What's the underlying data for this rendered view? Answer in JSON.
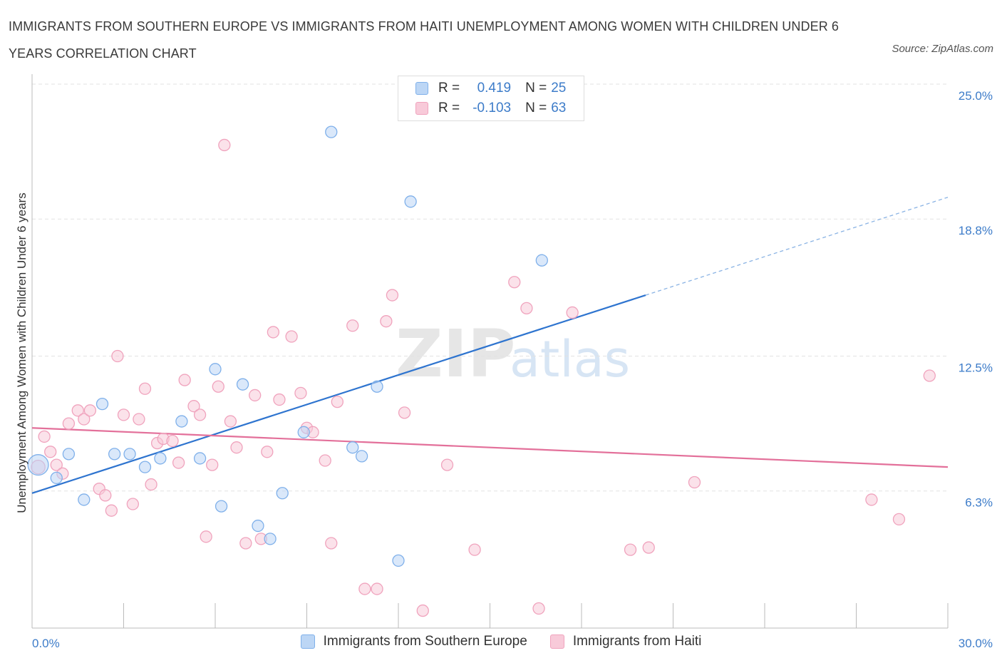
{
  "title": "IMMIGRANTS FROM SOUTHERN EUROPE VS IMMIGRANTS FROM HAITI UNEMPLOYMENT AMONG WOMEN WITH CHILDREN UNDER 6 YEARS CORRELATION CHART",
  "source": "Source: ZipAtlas.com",
  "watermark": {
    "zip": "ZIP",
    "atlas": "atlas"
  },
  "legend_top": {
    "r_label": "R =",
    "n_label": "N =",
    "rows": [
      {
        "r": "0.419",
        "n": "25"
      },
      {
        "r": "-0.103",
        "n": "63"
      }
    ]
  },
  "chart_data": {
    "type": "scatter",
    "xlabel": "",
    "ylabel": "Unemployment Among Women with Children Under 6 years",
    "xlim": [
      0,
      30
    ],
    "ylim": [
      0,
      25
    ],
    "x_tick_labels": [
      "0.0%",
      "30.0%"
    ],
    "y_ticks": [
      {
        "value": 6.3,
        "label": "6.3%"
      },
      {
        "value": 12.5,
        "label": "12.5%"
      },
      {
        "value": 18.8,
        "label": "18.8%"
      },
      {
        "value": 25.0,
        "label": "25.0%"
      }
    ],
    "grid": true,
    "legend_position": "bottom",
    "series": [
      {
        "name": "Immigrants from Southern Europe",
        "color": "#7fb0ea",
        "fill": "#bcd6f5",
        "trend": {
          "x0": 0,
          "y0": 6.2,
          "x1": 20.1,
          "y1": 15.3,
          "dash_x1": 30,
          "dash_y1": 19.8
        },
        "points": [
          [
            0.2,
            7.5,
            18
          ],
          [
            0.8,
            6.9,
            10
          ],
          [
            1.2,
            8.0,
            10
          ],
          [
            1.7,
            5.9,
            10
          ],
          [
            2.3,
            10.3,
            10
          ],
          [
            2.7,
            8.0,
            10
          ],
          [
            3.2,
            8.0,
            10
          ],
          [
            3.7,
            7.4,
            10
          ],
          [
            4.2,
            7.8,
            10
          ],
          [
            4.9,
            9.5,
            10
          ],
          [
            5.5,
            7.8,
            10
          ],
          [
            6.0,
            11.9,
            10
          ],
          [
            6.2,
            5.6,
            10
          ],
          [
            6.9,
            11.2,
            10
          ],
          [
            7.4,
            4.7,
            10
          ],
          [
            7.8,
            4.1,
            10
          ],
          [
            8.2,
            6.2,
            10
          ],
          [
            8.9,
            9.0,
            10
          ],
          [
            10.5,
            8.3,
            10
          ],
          [
            10.8,
            7.9,
            10
          ],
          [
            9.8,
            22.8,
            10
          ],
          [
            11.3,
            11.1,
            10
          ],
          [
            12.4,
            19.6,
            10
          ],
          [
            16.7,
            16.9,
            10
          ],
          [
            12.0,
            3.1,
            10
          ]
        ]
      },
      {
        "name": "Immigrants from Haiti",
        "color": "#f0a3bd",
        "fill": "#f8cad9",
        "trend": {
          "x0": 0,
          "y0": 9.2,
          "x1": 30,
          "y1": 7.4
        },
        "points": [
          [
            0.2,
            7.4,
            12
          ],
          [
            0.4,
            8.8,
            10
          ],
          [
            0.6,
            8.1,
            10
          ],
          [
            0.8,
            7.5,
            10
          ],
          [
            1.0,
            7.1,
            10
          ],
          [
            1.2,
            9.4,
            10
          ],
          [
            1.5,
            10.0,
            10
          ],
          [
            1.7,
            9.6,
            10
          ],
          [
            1.9,
            10.0,
            10
          ],
          [
            2.2,
            6.4,
            10
          ],
          [
            2.4,
            6.1,
            10
          ],
          [
            2.6,
            5.4,
            10
          ],
          [
            2.8,
            12.5,
            10
          ],
          [
            3.0,
            9.8,
            10
          ],
          [
            3.3,
            5.7,
            10
          ],
          [
            3.5,
            9.6,
            10
          ],
          [
            3.7,
            11.0,
            10
          ],
          [
            3.9,
            6.6,
            10
          ],
          [
            4.1,
            8.5,
            10
          ],
          [
            4.3,
            8.7,
            10
          ],
          [
            4.6,
            8.6,
            10
          ],
          [
            4.8,
            7.6,
            10
          ],
          [
            5.0,
            11.4,
            10
          ],
          [
            5.3,
            10.2,
            10
          ],
          [
            5.5,
            9.8,
            10
          ],
          [
            5.7,
            4.2,
            10
          ],
          [
            5.9,
            7.5,
            10
          ],
          [
            6.1,
            11.1,
            10
          ],
          [
            6.3,
            22.2,
            10
          ],
          [
            6.5,
            9.5,
            10
          ],
          [
            6.7,
            8.3,
            10
          ],
          [
            7.0,
            3.9,
            10
          ],
          [
            7.3,
            10.7,
            10
          ],
          [
            7.5,
            4.1,
            10
          ],
          [
            7.7,
            8.1,
            10
          ],
          [
            7.9,
            13.6,
            10
          ],
          [
            8.1,
            10.5,
            10
          ],
          [
            8.5,
            13.4,
            10
          ],
          [
            8.8,
            10.8,
            10
          ],
          [
            9.0,
            9.2,
            10
          ],
          [
            9.2,
            9.0,
            10
          ],
          [
            9.6,
            7.7,
            10
          ],
          [
            9.8,
            3.9,
            10
          ],
          [
            10.0,
            10.4,
            10
          ],
          [
            10.5,
            13.9,
            10
          ],
          [
            10.9,
            1.8,
            10
          ],
          [
            11.3,
            1.8,
            10
          ],
          [
            11.6,
            14.1,
            10
          ],
          [
            11.8,
            15.3,
            10
          ],
          [
            12.2,
            9.9,
            10
          ],
          [
            12.8,
            0.8,
            10
          ],
          [
            13.6,
            7.5,
            10
          ],
          [
            14.5,
            3.6,
            10
          ],
          [
            15.8,
            15.9,
            10
          ],
          [
            16.2,
            14.7,
            10
          ],
          [
            16.6,
            0.9,
            10
          ],
          [
            17.7,
            14.5,
            10
          ],
          [
            19.6,
            3.6,
            10
          ],
          [
            20.2,
            3.7,
            10
          ],
          [
            21.7,
            6.7,
            10
          ],
          [
            27.5,
            5.9,
            10
          ],
          [
            28.4,
            5.0,
            10
          ],
          [
            29.4,
            11.6,
            10
          ]
        ]
      }
    ]
  }
}
